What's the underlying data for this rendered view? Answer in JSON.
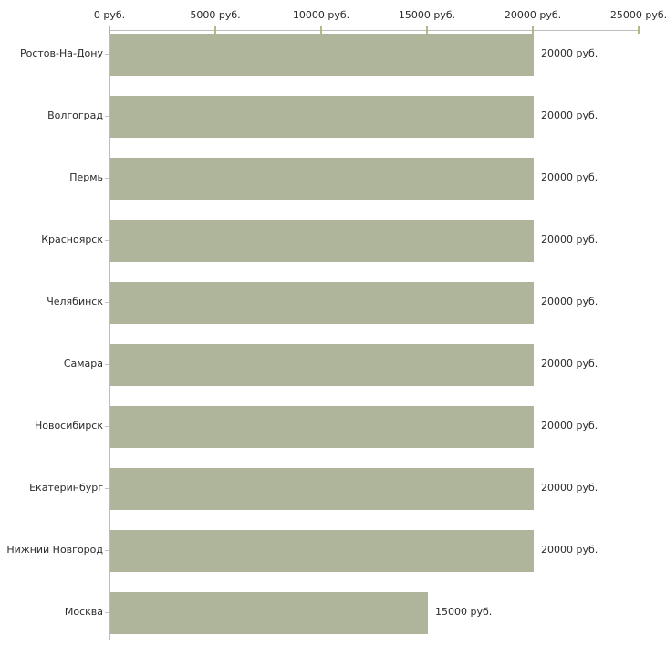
{
  "chart_data": {
    "type": "bar",
    "orientation": "horizontal",
    "title": "",
    "xlabel": "",
    "ylabel": "",
    "xlim": [
      0,
      25000
    ],
    "grid": false,
    "legend": false,
    "categories": [
      "Ростов-На-Дону",
      "Волгоград",
      "Пермь",
      "Красноярск",
      "Челябинск",
      "Самара",
      "Новосибирск",
      "Екатеринбург",
      "Нижний Новгород",
      "Москва"
    ],
    "values": [
      20000,
      20000,
      20000,
      20000,
      20000,
      20000,
      20000,
      20000,
      20000,
      15000
    ],
    "value_labels": [
      "20000 руб.",
      "20000 руб.",
      "20000 руб.",
      "20000 руб.",
      "20000 руб.",
      "20000 руб.",
      "20000 руб.",
      "20000 руб.",
      "20000 руб.",
      "15000 руб."
    ],
    "x_ticks": [
      {
        "value": 0,
        "label": "0 руб."
      },
      {
        "value": 5000,
        "label": "5000 руб."
      },
      {
        "value": 10000,
        "label": "10000 руб."
      },
      {
        "value": 15000,
        "label": "15000 руб."
      },
      {
        "value": 20000,
        "label": "20000 руб."
      },
      {
        "value": 25000,
        "label": "25000 руб."
      }
    ],
    "colors": {
      "bar_fill": "#afb59b",
      "axis_line": "#bdbdbd",
      "x_tick_mark": "#b5b78a",
      "text": "#2b2b2b",
      "background": "#ffffff"
    }
  }
}
